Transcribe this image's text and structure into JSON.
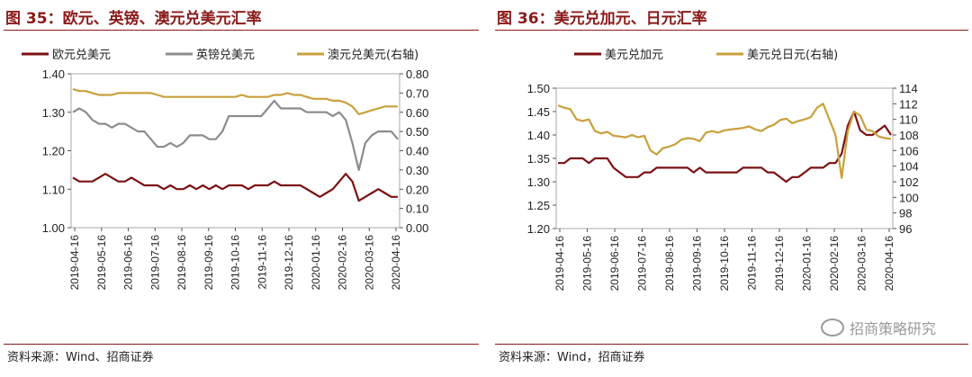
{
  "left": {
    "title": "图 35：欧元、英镑、澳元兑美元汇率",
    "source": "资料来源：Wind、招商证券"
  },
  "right": {
    "title": "图 36：美元兑加元、日元汇率",
    "source": "资料来源：Wind，招商证券",
    "watermark": "招商策略研究"
  },
  "colors": {
    "dark_red": "#7b1113",
    "gray": "#8c8c8c",
    "gold": "#c8a13c",
    "accent": "#8b1a1a"
  },
  "chart_data": [
    {
      "type": "line",
      "x_ticks": [
        "2019-04-16",
        "2019-05-16",
        "2019-06-16",
        "2019-07-16",
        "2019-08-16",
        "2019-09-16",
        "2019-10-16",
        "2019-11-16",
        "2019-12-16",
        "2020-01-16",
        "2020-02-16",
        "2020-03-16",
        "2020-04-16"
      ],
      "y_left_ticks": [
        "1.00",
        "1.10",
        "1.20",
        "1.30",
        "1.40"
      ],
      "y_left_range": [
        1.0,
        1.4
      ],
      "y_right_ticks": [
        "0.00",
        "0.10",
        "0.20",
        "0.30",
        "0.40",
        "0.50",
        "0.60",
        "0.70",
        "0.80"
      ],
      "y_right_range": [
        0.0,
        0.8
      ],
      "legend_placement": "top",
      "series": [
        {
          "name": "欧元兑美元",
          "axis": "left",
          "color": "#7b1113",
          "values": [
            1.13,
            1.12,
            1.12,
            1.12,
            1.13,
            1.14,
            1.13,
            1.12,
            1.12,
            1.13,
            1.12,
            1.11,
            1.11,
            1.11,
            1.1,
            1.11,
            1.1,
            1.1,
            1.11,
            1.1,
            1.11,
            1.1,
            1.11,
            1.1,
            1.11,
            1.11,
            1.11,
            1.1,
            1.11,
            1.11,
            1.11,
            1.12,
            1.11,
            1.11,
            1.11,
            1.11,
            1.1,
            1.09,
            1.08,
            1.09,
            1.1,
            1.12,
            1.14,
            1.12,
            1.07,
            1.08,
            1.09,
            1.1,
            1.09,
            1.08,
            1.08
          ]
        },
        {
          "name": "英镑兑美元",
          "axis": "left",
          "color": "#8c8c8c",
          "values": [
            1.3,
            1.31,
            1.3,
            1.28,
            1.27,
            1.27,
            1.26,
            1.27,
            1.27,
            1.26,
            1.25,
            1.25,
            1.23,
            1.21,
            1.21,
            1.22,
            1.21,
            1.22,
            1.24,
            1.24,
            1.24,
            1.23,
            1.23,
            1.25,
            1.29,
            1.29,
            1.29,
            1.29,
            1.29,
            1.29,
            1.31,
            1.33,
            1.31,
            1.31,
            1.31,
            1.31,
            1.3,
            1.3,
            1.3,
            1.3,
            1.29,
            1.3,
            1.28,
            1.22,
            1.15,
            1.22,
            1.24,
            1.25,
            1.25,
            1.25,
            1.23
          ]
        },
        {
          "name": "澳元兑美元(右轴)",
          "axis": "right",
          "color": "#c8a13c",
          "values": [
            0.72,
            0.71,
            0.71,
            0.7,
            0.69,
            0.69,
            0.69,
            0.7,
            0.7,
            0.7,
            0.7,
            0.7,
            0.7,
            0.69,
            0.68,
            0.68,
            0.68,
            0.68,
            0.68,
            0.68,
            0.68,
            0.68,
            0.68,
            0.68,
            0.68,
            0.68,
            0.69,
            0.68,
            0.68,
            0.68,
            0.68,
            0.69,
            0.69,
            0.7,
            0.69,
            0.69,
            0.68,
            0.67,
            0.67,
            0.67,
            0.66,
            0.66,
            0.65,
            0.63,
            0.59,
            0.6,
            0.61,
            0.62,
            0.63,
            0.63,
            0.63
          ]
        }
      ]
    },
    {
      "type": "line",
      "x_ticks": [
        "2019-04-16",
        "2019-05-16",
        "2019-06-16",
        "2019-07-16",
        "2019-08-16",
        "2019-09-16",
        "2019-10-16",
        "2019-11-16",
        "2019-12-16",
        "2020-01-16",
        "2020-02-16",
        "2020-03-16",
        "2020-04-16"
      ],
      "y_left_ticks": [
        "1.20",
        "1.25",
        "1.30",
        "1.35",
        "1.40",
        "1.45",
        "1.50"
      ],
      "y_left_range": [
        1.2,
        1.5
      ],
      "y_right_ticks": [
        "96",
        "98",
        "100",
        "102",
        "104",
        "106",
        "108",
        "110",
        "112",
        "114"
      ],
      "y_right_range": [
        96,
        114
      ],
      "legend_placement": "top",
      "series": [
        {
          "name": "美元兑加元",
          "axis": "left",
          "color": "#7b1113",
          "values": [
            1.34,
            1.34,
            1.35,
            1.35,
            1.35,
            1.34,
            1.35,
            1.35,
            1.35,
            1.33,
            1.32,
            1.31,
            1.31,
            1.31,
            1.32,
            1.32,
            1.33,
            1.33,
            1.33,
            1.33,
            1.33,
            1.33,
            1.32,
            1.33,
            1.32,
            1.32,
            1.32,
            1.32,
            1.32,
            1.32,
            1.33,
            1.33,
            1.33,
            1.33,
            1.32,
            1.32,
            1.31,
            1.3,
            1.31,
            1.31,
            1.32,
            1.33,
            1.33,
            1.33,
            1.34,
            1.34,
            1.36,
            1.42,
            1.45,
            1.41,
            1.4,
            1.4,
            1.41,
            1.42,
            1.4
          ]
        },
        {
          "name": "美元兑日元(右轴)",
          "axis": "right",
          "color": "#c8a13c",
          "values": [
            111.8,
            111.5,
            111.3,
            110.0,
            109.8,
            110.0,
            108.5,
            108.2,
            108.4,
            107.9,
            107.8,
            107.7,
            108.0,
            107.7,
            107.9,
            106.0,
            105.5,
            106.3,
            106.5,
            106.8,
            107.4,
            107.6,
            107.5,
            107.2,
            108.3,
            108.5,
            108.3,
            108.6,
            108.7,
            108.8,
            108.9,
            109.1,
            108.7,
            108.5,
            109.0,
            109.3,
            109.9,
            110.1,
            109.5,
            109.8,
            110.0,
            110.3,
            111.5,
            112.0,
            110.0,
            108.0,
            102.5,
            108.5,
            111.0,
            110.5,
            108.7,
            108.5,
            107.8,
            107.6,
            107.5
          ]
        }
      ]
    }
  ]
}
